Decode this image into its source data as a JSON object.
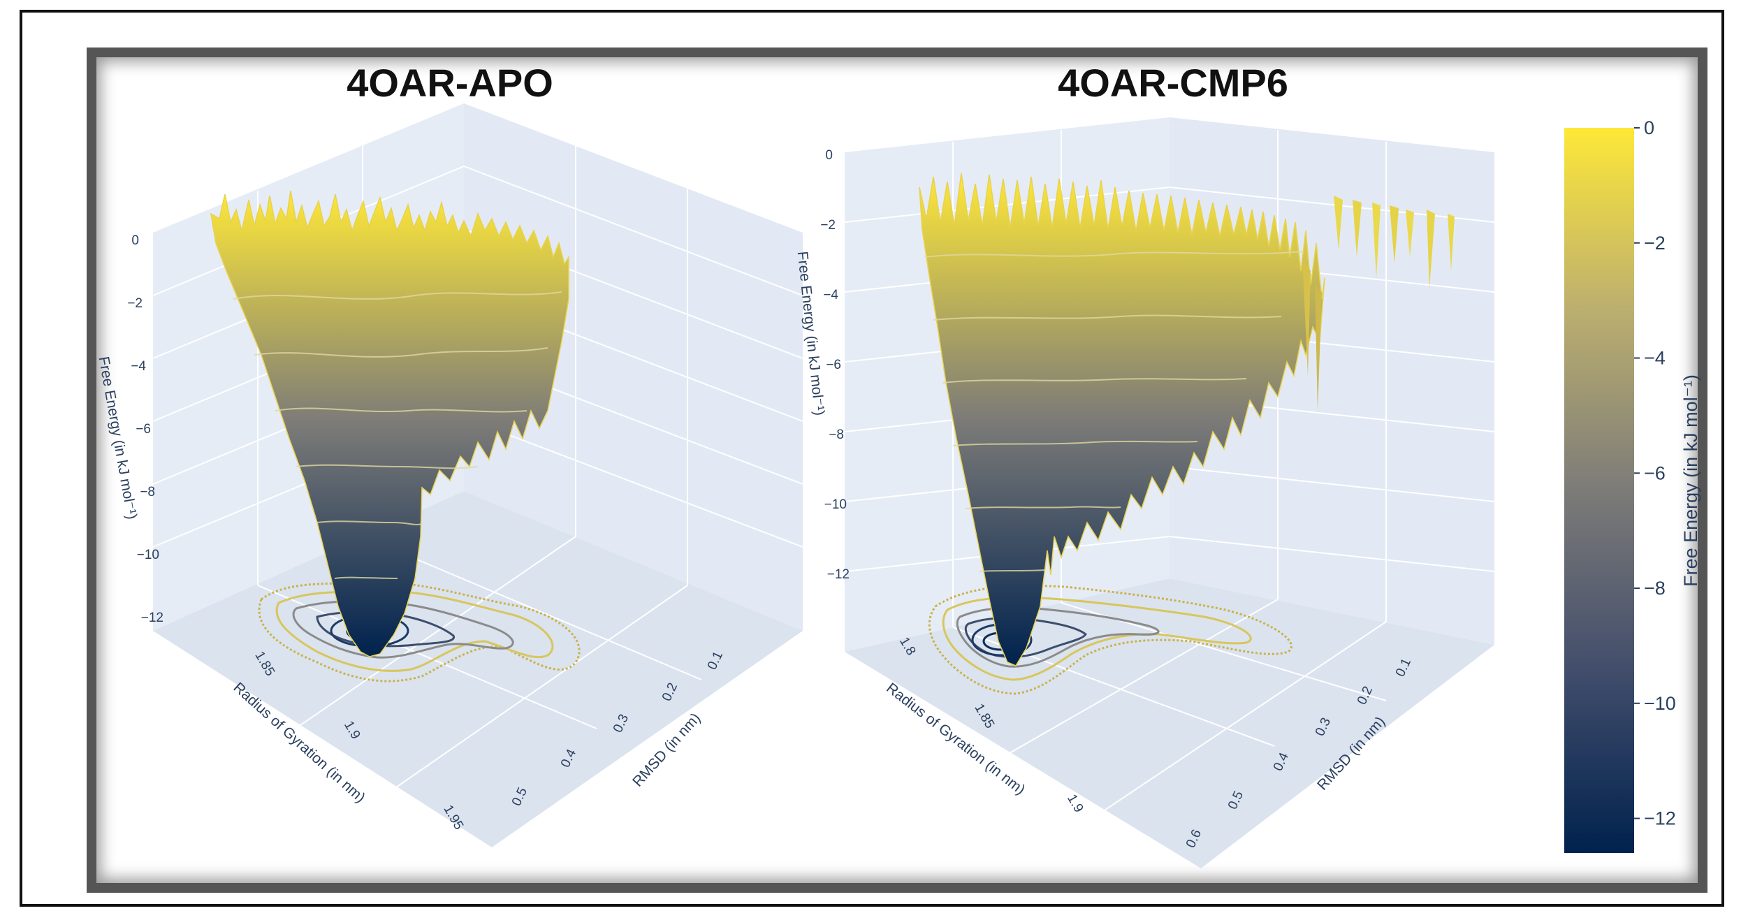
{
  "chart_data": [
    {
      "type": "surface",
      "title": "4OAR-APO",
      "xlabel": "Radius of Gyration (in nm)",
      "ylabel": "RMSD (in nm)",
      "zlabel": "Free Energy (in kJ mol⁻¹)",
      "x_ticks": [
        "1.85",
        "1.9",
        "1.95"
      ],
      "y_ticks": [
        "0.1",
        "0.2",
        "0.3",
        "0.4",
        "0.5"
      ],
      "z_ticks": [
        "0",
        "−2",
        "−4",
        "−6",
        "−8",
        "−10",
        "−12"
      ],
      "zlim": [
        -12,
        0
      ],
      "minimum": {
        "free_energy": -12
      },
      "contours_on_floor": true,
      "colorscale": "cividis",
      "grid": true
    },
    {
      "type": "surface",
      "title": "4OAR-CMP6",
      "xlabel": "Radius of Gyration (in nm)",
      "ylabel": "RMSD (in nm)",
      "zlabel": "Free Energy (in kJ mol⁻¹)",
      "x_ticks": [
        "1.8",
        "1.85",
        "1.9"
      ],
      "y_ticks": [
        "0.1",
        "0.2",
        "0.3",
        "0.4",
        "0.5",
        "0.6"
      ],
      "z_ticks": [
        "0",
        "−2",
        "−4",
        "−6",
        "−8",
        "−10",
        "−12"
      ],
      "zlim": [
        -12,
        0
      ],
      "minimum": {
        "free_energy": -12
      },
      "contours_on_floor": true,
      "colorscale": "cividis",
      "grid": true
    }
  ],
  "colorbar": {
    "label": "Free Energy (in kJ mol⁻¹)",
    "ticks": [
      0,
      -2,
      -4,
      -6,
      -8,
      -10,
      -12
    ],
    "tick_labels": [
      "0",
      "−2",
      "−4",
      "−6",
      "−8",
      "−10",
      "−12"
    ],
    "range": [
      -12.6,
      0
    ],
    "color_low": "#00224e",
    "color_mid": "#7c7b78",
    "color_high": "#fee838"
  },
  "colors": {
    "scene_wall": "#e5ecf6",
    "scene_floor": "#dfe6f1",
    "axis_text": "#2a3f5f"
  }
}
